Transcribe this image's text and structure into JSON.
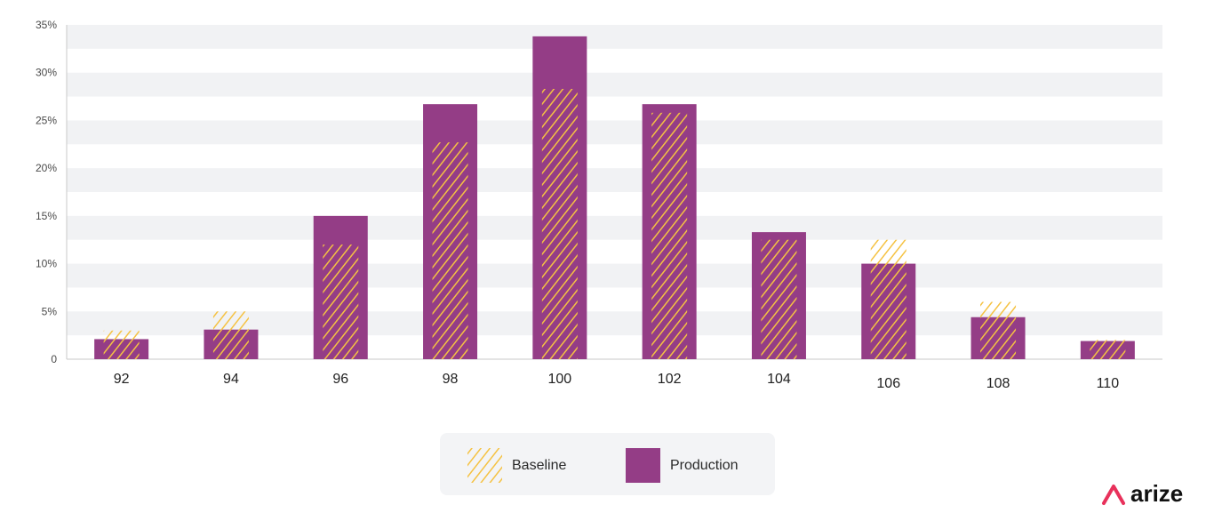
{
  "chart_data": {
    "type": "bar",
    "categories": [
      "92",
      "94",
      "96",
      "98",
      "100",
      "102",
      "104",
      "106",
      "108",
      "110"
    ],
    "series": [
      {
        "name": "Baseline",
        "values": [
          3,
          5,
          12,
          22.7,
          28.3,
          25.8,
          12.5,
          12.5,
          6,
          2
        ]
      },
      {
        "name": "Production",
        "values": [
          2.1,
          3.1,
          15,
          26.7,
          33.8,
          26.7,
          13.3,
          10,
          4.4,
          1.9
        ]
      }
    ],
    "ylim": [
      0,
      35
    ],
    "yticks": [
      "0",
      "5%",
      "10%",
      "15%",
      "20%",
      "25%",
      "30%",
      "35%"
    ],
    "grid": "alternating horizontal bands",
    "legend_position": "bottom-center",
    "colors": {
      "baseline": "#f5c242",
      "production": "#943d86",
      "band": "#f1f2f4",
      "legend_bg": "#f3f4f6",
      "brand_accent": "#e8315b"
    }
  },
  "brand": {
    "name": "arize"
  }
}
